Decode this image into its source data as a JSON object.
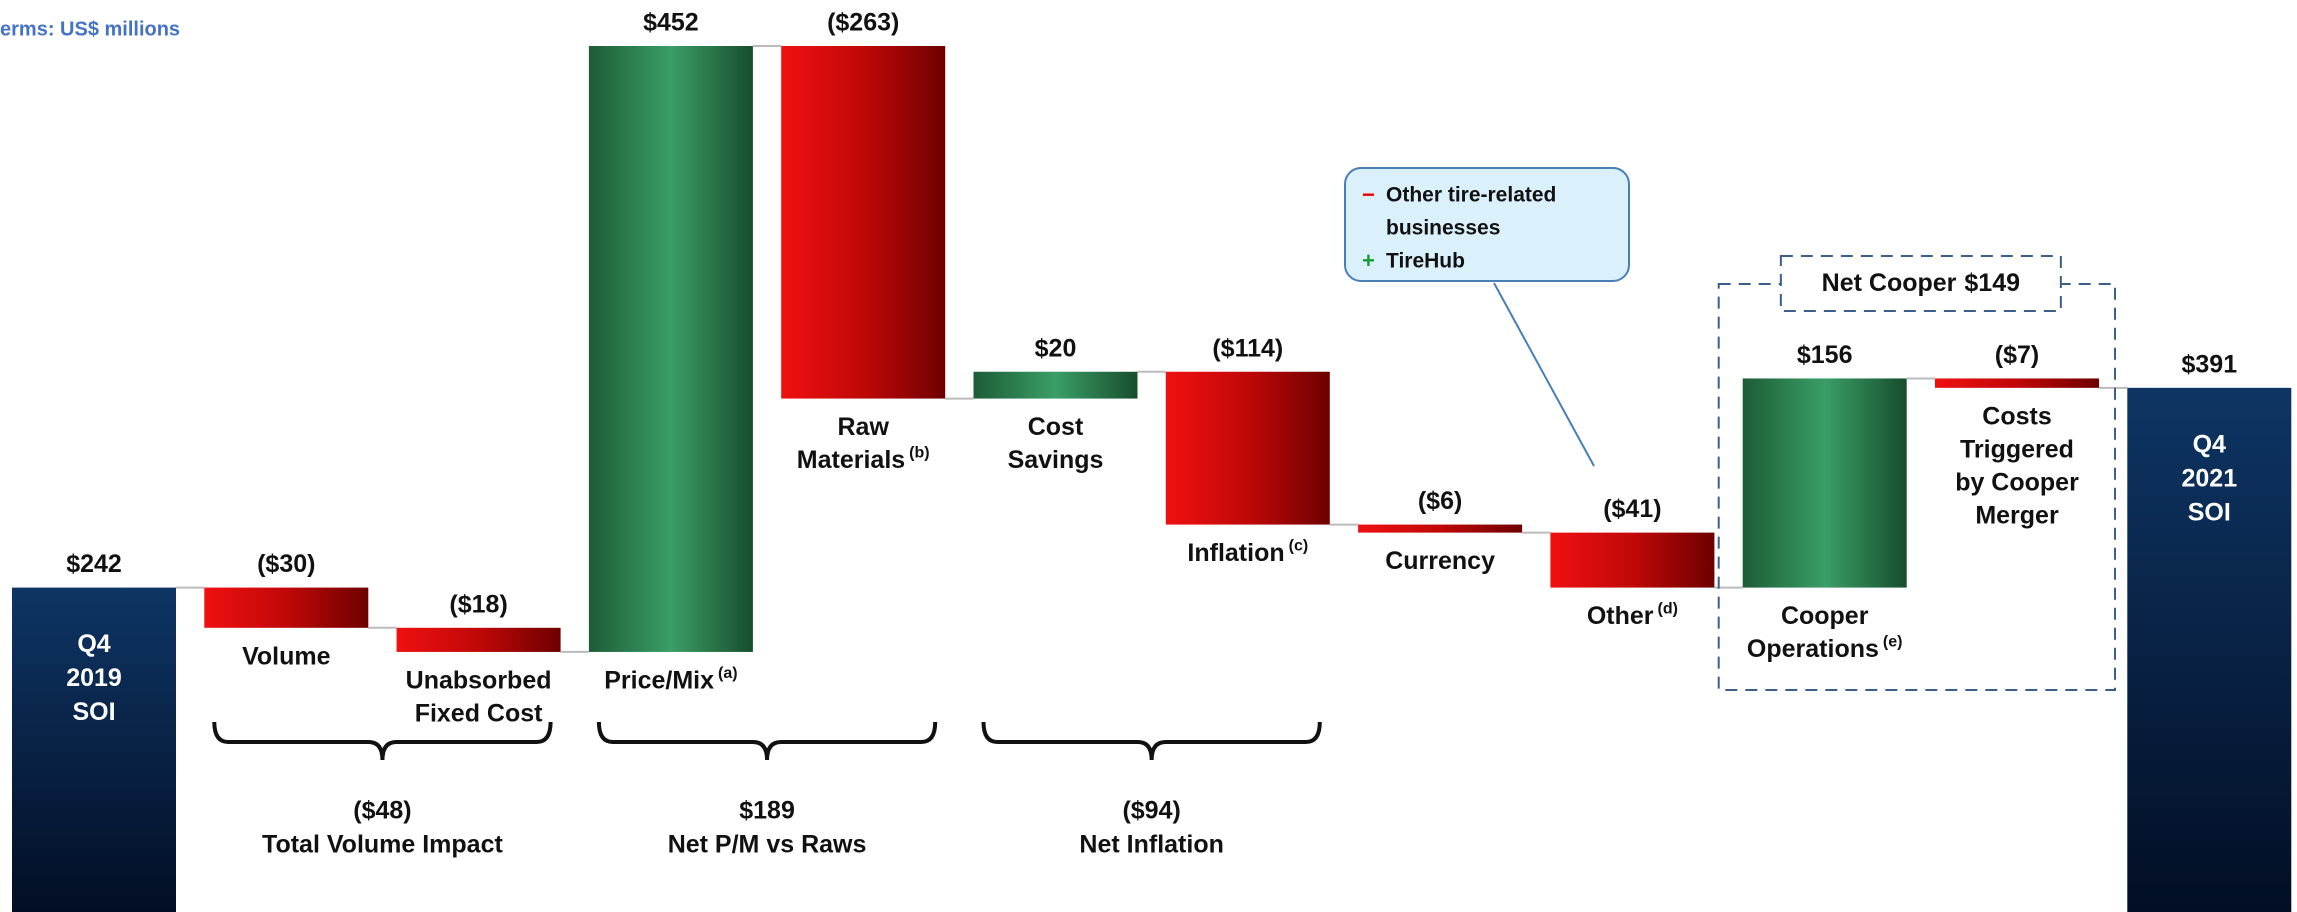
{
  "chart_data": {
    "type": "waterfall",
    "units_note": "erms: US$ millions",
    "categories": [
      [
        "Q4",
        "2019",
        "SOI"
      ],
      [
        "Volume"
      ],
      [
        "Unabsorbed",
        "Fixed Cost"
      ],
      [
        "Price/Mix"
      ],
      [
        "Raw",
        "Materials"
      ],
      [
        "Cost",
        "Savings"
      ],
      [
        "Inflation"
      ],
      [
        "Currency"
      ],
      [
        "Other"
      ],
      [
        "Cooper",
        "Operations"
      ],
      [
        "Costs",
        "Triggered",
        "by Cooper",
        "Merger"
      ],
      [
        "Q4",
        "2021",
        "SOI"
      ]
    ],
    "category_notes": [
      null,
      null,
      null,
      "(a)",
      "(b)",
      null,
      "(c)",
      null,
      "(d)",
      "(e)",
      null,
      null
    ],
    "measure": [
      "total",
      "relative",
      "relative",
      "relative",
      "relative",
      "relative",
      "relative",
      "relative",
      "relative",
      "relative",
      "relative",
      "total"
    ],
    "values": [
      242,
      -30,
      -18,
      452,
      -263,
      20,
      -114,
      -6,
      -41,
      156,
      -7,
      391
    ],
    "value_labels": [
      "$242",
      "($30)",
      "($18)",
      "$452",
      "($263)",
      "$20",
      "($114)",
      "($6)",
      "($41)",
      "$156",
      "($7)",
      "$391"
    ],
    "colors": {
      "total": "#0b2b55",
      "increase": "#2e8a56",
      "decrease": "#d10a0a"
    },
    "groups": [
      {
        "style": "bracket",
        "label": "Total Volume Impact",
        "value": -48,
        "value_label": "($48)"
      },
      {
        "style": "bracket",
        "label": "Net P/M vs Raws",
        "value": 189,
        "value_label": "$189"
      },
      {
        "style": "bracket",
        "label": "Net Inflation",
        "value": -94,
        "value_label": "($94)"
      },
      {
        "style": "box",
        "label": "Net Cooper",
        "value": 149,
        "value_label": "$149"
      }
    ],
    "callout": [
      {
        "sign": "−",
        "text": "Other tire-related",
        "text2": "businesses"
      },
      {
        "sign": "+",
        "text": "TireHub"
      }
    ]
  }
}
